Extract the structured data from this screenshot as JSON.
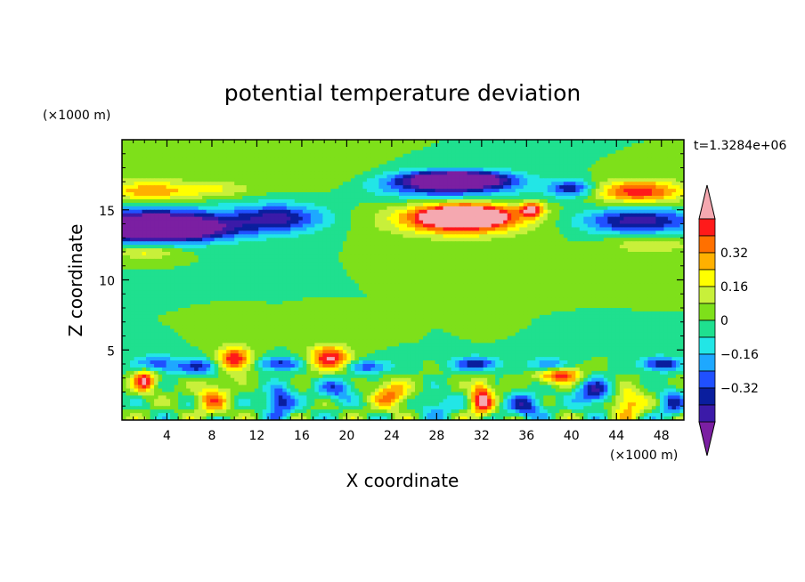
{
  "chart_data": {
    "type": "heatmap",
    "title": "potential temperature deviation",
    "xlabel": "X coordinate",
    "ylabel": "Z coordinate",
    "x_unit": "(×1000 m)",
    "y_unit": "(×1000 m)",
    "time_label": "t=1.3284e+06",
    "xlim": [
      0,
      50
    ],
    "ylim": [
      0,
      20
    ],
    "x_ticks": [
      4,
      8,
      12,
      16,
      20,
      24,
      28,
      32,
      36,
      40,
      44,
      48
    ],
    "x_tick_labels": [
      "4",
      "8",
      "12",
      "16",
      "20",
      "24",
      "28",
      "32",
      "36",
      "40",
      "44",
      "48"
    ],
    "y_ticks": [
      5,
      10,
      15
    ],
    "y_tick_labels": [
      "5",
      "10",
      "15"
    ],
    "colorbar": {
      "levels": [
        -0.48,
        -0.4,
        -0.32,
        -0.24,
        -0.16,
        -0.08,
        0,
        0.08,
        0.16,
        0.24,
        0.32,
        0.4,
        0.48
      ],
      "colors": [
        "#7b1fa2",
        "#3b1aa8",
        "#0a1e9e",
        "#2050ff",
        "#1ea8ff",
        "#22e6e6",
        "#1fe08f",
        "#7ee01a",
        "#c8f03a",
        "#ffff00",
        "#ffb000",
        "#ff7000",
        "#ff1a1a",
        "#f5a8b0"
      ],
      "labels": [
        {
          "value": 0.32,
          "text": "0.32"
        },
        {
          "value": 0.16,
          "text": "0.16"
        },
        {
          "value": 0,
          "text": "0"
        },
        {
          "value": -0.16,
          "text": "−0.16"
        },
        {
          "value": -0.32,
          "text": "−0.32"
        }
      ],
      "extend": "both"
    },
    "background_value": 0,
    "features": [
      {
        "x": 30,
        "z": 14.2,
        "rx": 6,
        "rz": 1.1,
        "v": 0.4
      },
      {
        "x": 30.5,
        "z": 14.6,
        "rx": 4,
        "rz": 0.8,
        "v": 0.6
      },
      {
        "x": 29,
        "z": 16.8,
        "rx": 6,
        "rz": 0.9,
        "v": -0.5
      },
      {
        "x": 30,
        "z": 17.2,
        "rx": 4,
        "rz": 0.5,
        "v": -0.6
      },
      {
        "x": 3,
        "z": 14,
        "rx": 7,
        "rz": 1.2,
        "v": -0.5
      },
      {
        "x": 3,
        "z": 13.6,
        "rx": 6,
        "rz": 0.8,
        "v": -0.6
      },
      {
        "x": 14,
        "z": 14.4,
        "rx": 4,
        "rz": 1.0,
        "v": -0.4
      },
      {
        "x": 2.5,
        "z": 16.3,
        "rx": 5,
        "rz": 0.8,
        "v": 0.3
      },
      {
        "x": 46,
        "z": 16.3,
        "rx": 4,
        "rz": 0.8,
        "v": 0.45
      },
      {
        "x": 46,
        "z": 14.2,
        "rx": 5,
        "rz": 0.9,
        "v": -0.45
      },
      {
        "x": 40,
        "z": 16.5,
        "rx": 2,
        "rz": 0.6,
        "v": -0.4
      },
      {
        "x": 36.5,
        "z": 15.0,
        "rx": 1,
        "rz": 0.5,
        "v": 0.5
      },
      {
        "x": 18,
        "z": 17.5,
        "rx": 5,
        "rz": 1.0,
        "v": 0.08
      },
      {
        "x": 9,
        "z": 16.5,
        "rx": 3,
        "rz": 0.5,
        "v": 0.12
      },
      {
        "x": 2,
        "z": 12,
        "rx": 3,
        "rz": 0.5,
        "v": 0.2
      },
      {
        "x": 47,
        "z": 12.5,
        "rx": 4,
        "rz": 0.6,
        "v": 0.15
      },
      {
        "x": 3,
        "z": 4,
        "rx": 2,
        "rz": 0.6,
        "v": -0.3
      },
      {
        "x": 7,
        "z": 3.8,
        "rx": 2,
        "rz": 0.6,
        "v": -0.35
      },
      {
        "x": 14,
        "z": 4,
        "rx": 2,
        "rz": 0.5,
        "v": -0.35
      },
      {
        "x": 22,
        "z": 3.8,
        "rx": 2,
        "rz": 0.5,
        "v": -0.3
      },
      {
        "x": 31.5,
        "z": 4,
        "rx": 2,
        "rz": 0.5,
        "v": -0.4
      },
      {
        "x": 38,
        "z": 3.9,
        "rx": 1.8,
        "rz": 0.5,
        "v": -0.3
      },
      {
        "x": 48,
        "z": 4,
        "rx": 1.8,
        "rz": 0.5,
        "v": -0.4
      },
      {
        "x": 10,
        "z": 4.3,
        "rx": 1.6,
        "rz": 0.9,
        "v": 0.5
      },
      {
        "x": 18.5,
        "z": 4.4,
        "rx": 1.8,
        "rz": 0.9,
        "v": 0.5
      },
      {
        "x": 39,
        "z": 3.2,
        "rx": 2,
        "rz": 0.6,
        "v": 0.45
      },
      {
        "x": 2,
        "z": 2.8,
        "rx": 1,
        "rz": 0.8,
        "v": 0.5
      },
      {
        "x": 8,
        "z": 1.5,
        "rx": 1.5,
        "rz": 1.2,
        "v": 0.3
      },
      {
        "x": 14,
        "z": 1.3,
        "rx": 1.2,
        "rz": 1.1,
        "v": -0.4
      },
      {
        "x": 24,
        "z": 1.8,
        "rx": 1.6,
        "rz": 1.0,
        "v": 0.35
      },
      {
        "x": 32,
        "z": 1.5,
        "rx": 1.0,
        "rz": 1.3,
        "v": 0.5
      },
      {
        "x": 36,
        "z": 1.0,
        "rx": 1.5,
        "rz": 0.9,
        "v": -0.35
      },
      {
        "x": 42,
        "z": 2.0,
        "rx": 1.5,
        "rz": 1.0,
        "v": -0.4
      },
      {
        "x": 45,
        "z": 1.2,
        "rx": 1.4,
        "rz": 1.0,
        "v": 0.35
      },
      {
        "x": 49,
        "z": 1.2,
        "rx": 1.2,
        "rz": 1.0,
        "v": -0.3
      },
      {
        "x": 28,
        "z": 1.0,
        "rx": 1.5,
        "rz": 0.9,
        "v": -0.2
      },
      {
        "x": 19,
        "z": 2.2,
        "rx": 1.5,
        "rz": 0.8,
        "v": -0.3
      }
    ]
  }
}
